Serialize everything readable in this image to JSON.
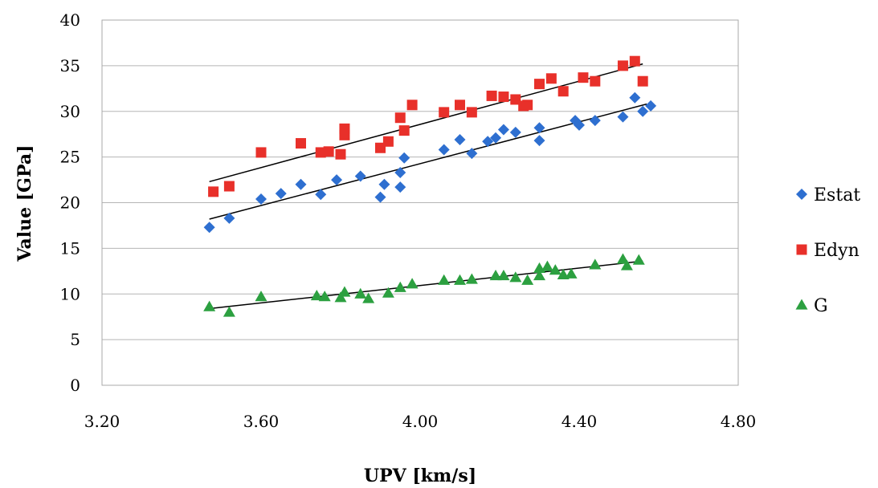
{
  "chart_data": {
    "type": "scatter",
    "xlabel": "UPV [km/s]",
    "ylabel": "Value [GPa]",
    "xlim": [
      3.2,
      4.8
    ],
    "ylim": [
      0,
      40
    ],
    "xticks": [
      "3.20",
      "3.60",
      "4.00",
      "4.40",
      "4.80"
    ],
    "yticks": [
      "0",
      "5",
      "10",
      "15",
      "20",
      "25",
      "30",
      "35",
      "40"
    ],
    "xtick_values": [
      3.2,
      3.6,
      4.0,
      4.4,
      4.8
    ],
    "ytick_values": [
      0,
      5,
      10,
      15,
      20,
      25,
      30,
      35,
      40
    ],
    "grid": "horizontal",
    "legend_position": "right",
    "series": [
      {
        "name": "Estat",
        "color": "#2E6FD0",
        "marker": "diamond",
        "trendline": [
          [
            3.47,
            18.2
          ],
          [
            4.57,
            30.8
          ]
        ],
        "points": [
          [
            3.47,
            17.3
          ],
          [
            3.52,
            18.3
          ],
          [
            3.6,
            20.4
          ],
          [
            3.65,
            21.0
          ],
          [
            3.7,
            22.0
          ],
          [
            3.75,
            20.9
          ],
          [
            3.79,
            22.5
          ],
          [
            3.85,
            22.9
          ],
          [
            3.9,
            20.6
          ],
          [
            3.91,
            22.0
          ],
          [
            3.95,
            23.3
          ],
          [
            3.95,
            21.7
          ],
          [
            3.96,
            24.9
          ],
          [
            4.06,
            25.8
          ],
          [
            4.1,
            26.9
          ],
          [
            4.13,
            25.4
          ],
          [
            4.17,
            26.7
          ],
          [
            4.19,
            27.1
          ],
          [
            4.21,
            28.0
          ],
          [
            4.24,
            27.7
          ],
          [
            4.3,
            28.2
          ],
          [
            4.3,
            26.8
          ],
          [
            4.39,
            29.0
          ],
          [
            4.4,
            28.5
          ],
          [
            4.44,
            29.0
          ],
          [
            4.51,
            29.4
          ],
          [
            4.54,
            31.5
          ],
          [
            4.56,
            30.0
          ],
          [
            4.58,
            30.6
          ]
        ]
      },
      {
        "name": "Edyn",
        "color": "#E8302A",
        "marker": "square",
        "trendline": [
          [
            3.47,
            22.3
          ],
          [
            4.56,
            35.2
          ]
        ],
        "points": [
          [
            3.48,
            21.2
          ],
          [
            3.52,
            21.8
          ],
          [
            3.6,
            25.5
          ],
          [
            3.7,
            26.5
          ],
          [
            3.75,
            25.5
          ],
          [
            3.77,
            25.6
          ],
          [
            3.8,
            25.3
          ],
          [
            3.81,
            28.1
          ],
          [
            3.81,
            27.4
          ],
          [
            3.9,
            26.0
          ],
          [
            3.92,
            26.7
          ],
          [
            3.95,
            29.3
          ],
          [
            3.96,
            27.9
          ],
          [
            3.98,
            30.7
          ],
          [
            4.06,
            29.9
          ],
          [
            4.1,
            30.7
          ],
          [
            4.13,
            29.9
          ],
          [
            4.18,
            31.7
          ],
          [
            4.21,
            31.6
          ],
          [
            4.24,
            31.3
          ],
          [
            4.26,
            30.6
          ],
          [
            4.27,
            30.7
          ],
          [
            4.3,
            33.0
          ],
          [
            4.33,
            33.6
          ],
          [
            4.36,
            32.2
          ],
          [
            4.41,
            33.7
          ],
          [
            4.44,
            33.3
          ],
          [
            4.51,
            35.0
          ],
          [
            4.54,
            35.5
          ],
          [
            4.56,
            33.3
          ]
        ]
      },
      {
        "name": "G",
        "color": "#2CA040",
        "marker": "triangle",
        "trendline": [
          [
            3.47,
            8.4
          ],
          [
            4.56,
            13.6
          ]
        ],
        "points": [
          [
            3.47,
            8.6
          ],
          [
            3.52,
            8.0
          ],
          [
            3.6,
            9.7
          ],
          [
            3.74,
            9.8
          ],
          [
            3.76,
            9.7
          ],
          [
            3.8,
            9.6
          ],
          [
            3.81,
            10.2
          ],
          [
            3.85,
            10.0
          ],
          [
            3.87,
            9.5
          ],
          [
            3.92,
            10.1
          ],
          [
            3.95,
            10.7
          ],
          [
            3.98,
            11.1
          ],
          [
            4.06,
            11.5
          ],
          [
            4.1,
            11.5
          ],
          [
            4.13,
            11.6
          ],
          [
            4.19,
            12.0
          ],
          [
            4.21,
            12.0
          ],
          [
            4.24,
            11.8
          ],
          [
            4.27,
            11.5
          ],
          [
            4.3,
            12.0
          ],
          [
            4.3,
            12.8
          ],
          [
            4.32,
            13.0
          ],
          [
            4.34,
            12.6
          ],
          [
            4.36,
            12.1
          ],
          [
            4.38,
            12.2
          ],
          [
            4.44,
            13.2
          ],
          [
            4.51,
            13.8
          ],
          [
            4.52,
            13.1
          ],
          [
            4.55,
            13.7
          ]
        ]
      }
    ]
  }
}
